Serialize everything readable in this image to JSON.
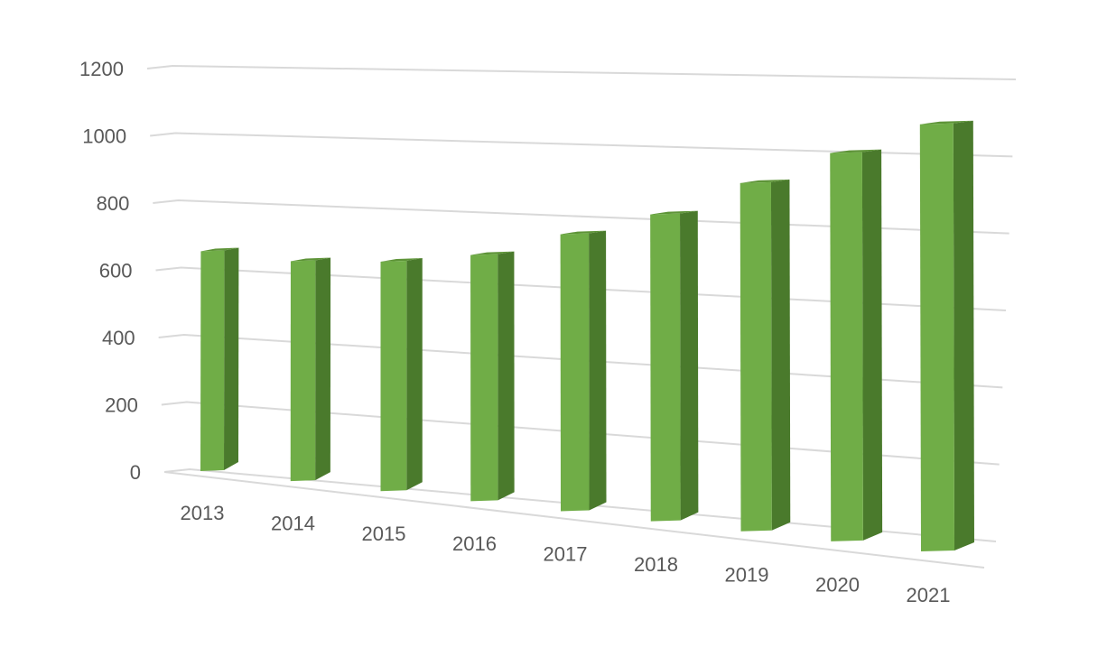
{
  "chart_data": {
    "type": "bar",
    "categories": [
      "2013",
      "2014",
      "2015",
      "2016",
      "2017",
      "2018",
      "2019",
      "2020",
      "2021"
    ],
    "values": [
      560,
      570,
      605,
      660,
      755,
      850,
      980,
      1110,
      1240
    ],
    "yticks": [
      0,
      200,
      400,
      600,
      800,
      1000,
      1200
    ],
    "ylim": [
      0,
      1200
    ],
    "title": "",
    "xlabel": "",
    "ylabel": "",
    "grid": true,
    "legend": "none",
    "projection": "3d-perspective",
    "colors": {
      "bar_front": "#70ad47",
      "bar_side": "#4a7a2c",
      "bar_top": "#5e9438",
      "grid": "#d9d9d9",
      "text": "#595959"
    }
  }
}
